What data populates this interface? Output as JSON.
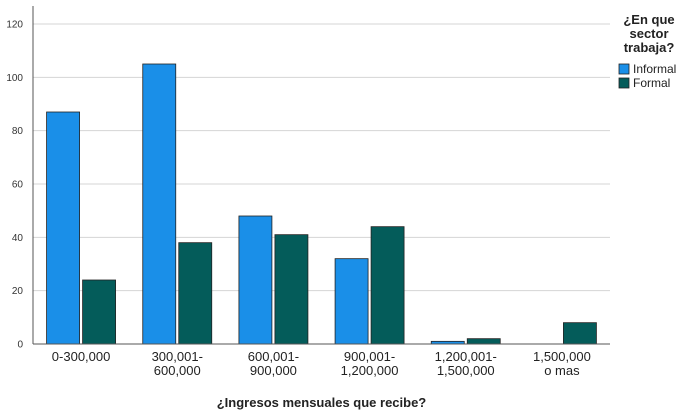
{
  "chart_data": {
    "type": "bar",
    "categories": [
      [
        "0-300,000"
      ],
      [
        "300,001-",
        "600,000"
      ],
      [
        "600,001-",
        "900,000"
      ],
      [
        "900,001-",
        "1,200,000"
      ],
      [
        "1,200,001-",
        "1,500,000"
      ],
      [
        "1,500,000",
        "o mas"
      ]
    ],
    "series": [
      {
        "name": "Informal",
        "color": "#1a8fe8",
        "values": [
          87,
          105,
          48,
          32,
          1,
          0
        ]
      },
      {
        "name": "Formal",
        "color": "#045c5a",
        "values": [
          24,
          38,
          41,
          44,
          2,
          8
        ]
      }
    ],
    "xlabel": "¿Ingresos mensuales que recibe?",
    "ylabel": "",
    "ylim": [
      0,
      120
    ],
    "yticks": [
      0,
      20,
      40,
      60,
      80,
      100,
      120
    ],
    "grid": true,
    "legend": {
      "title": [
        "¿En que",
        "sector",
        "trabaja?"
      ],
      "placement": "right"
    }
  }
}
